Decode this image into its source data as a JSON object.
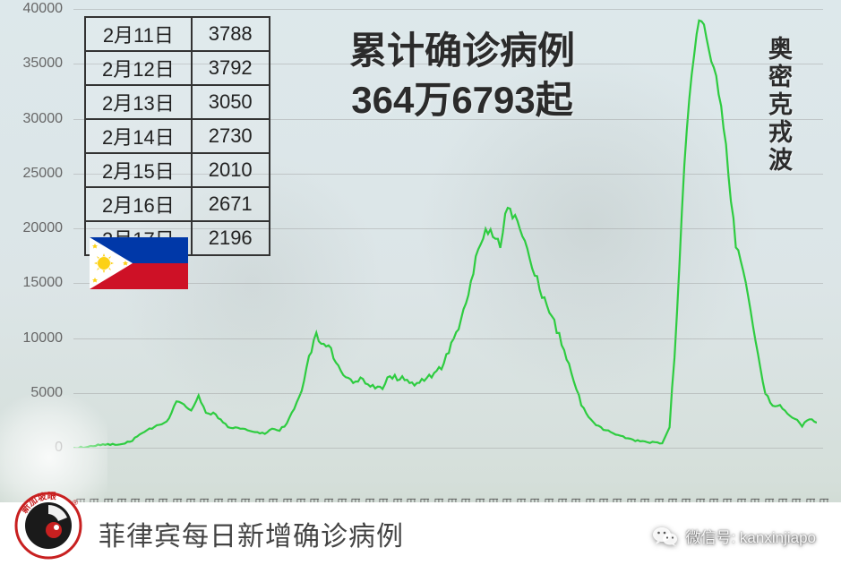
{
  "chart": {
    "type": "line",
    "title": "菲律宾每日新增确诊病例",
    "line_color": "#2ecc40",
    "grid_color": "rgba(150,150,150,0.4)",
    "background_hint": "beach_faded",
    "ylim": [
      0,
      40000
    ],
    "ytick_step": 5000,
    "yticks": [
      0,
      5000,
      10000,
      15000,
      20000,
      25000,
      30000,
      35000,
      40000
    ],
    "xticks": [
      "3月5日",
      "3月18日",
      "3月31日",
      "4月13日",
      "4月26日",
      "5月9日",
      "5月22日",
      "6月4日",
      "6月17日",
      "6月30日",
      "7月13日",
      "7月26日",
      "8月8日",
      "8月21日",
      "9月3日",
      "9月16日",
      "9月29日",
      "10月12日",
      "10月25日",
      "11月7日",
      "11月20日",
      "12月3日",
      "12月16日",
      "12月29日",
      "1月11日",
      "1月24日",
      "2月6日",
      "2月19日",
      "3月4日",
      "3月17日",
      "3月30日",
      "4月12日",
      "4月25日",
      "5月8日",
      "5月21日",
      "6月3日",
      "6月16日",
      "6月29日",
      "7月12日",
      "7月25日",
      "8月7日",
      "8月20日",
      "9月2日",
      "9月15日",
      "9月28日",
      "10月11日",
      "10月24日",
      "11月6日",
      "11月19日",
      "12月2日",
      "12月15日",
      "12月28日",
      "1月10日",
      "1月23日",
      "2月5日"
    ],
    "values": [
      10,
      40,
      120,
      200,
      260,
      300,
      320,
      450,
      680,
      1200,
      1600,
      1850,
      2200,
      2600,
      4200,
      3800,
      3400,
      4600,
      3200,
      3100,
      2600,
      1900,
      1800,
      1700,
      1500,
      1400,
      1300,
      1700,
      1600,
      2200,
      3500,
      5000,
      8200,
      10200,
      9500,
      8800,
      7400,
      6200,
      6100,
      6200,
      5800,
      5400,
      5500,
      6600,
      6400,
      6200,
      5800,
      6100,
      6200,
      6800,
      7200,
      8700,
      10600,
      12400,
      14800,
      18200,
      20100,
      19600,
      18600,
      22200,
      20900,
      19400,
      17200,
      15200,
      13400,
      11800,
      10200,
      8100,
      6200,
      4000,
      2700,
      2100,
      1700,
      1400,
      1100,
      900,
      700,
      600,
      500,
      450,
      420,
      1800,
      11900,
      25800,
      34400,
      38900,
      37800,
      34600,
      31500,
      25100,
      18500,
      16200,
      12500,
      8400,
      5000,
      3788,
      3792,
      3050,
      2730,
      2010,
      2671,
      2196
    ]
  },
  "table": {
    "rows": [
      {
        "date": "2月11日",
        "value": "3788"
      },
      {
        "date": "2月12日",
        "value": "3792"
      },
      {
        "date": "2月13日",
        "value": "3050"
      },
      {
        "date": "2月14日",
        "value": "2730"
      },
      {
        "date": "2月15日",
        "value": "2010"
      },
      {
        "date": "2月16日",
        "value": "2671"
      },
      {
        "date": "2月17日",
        "value": "2196"
      }
    ]
  },
  "headline": {
    "line1": "累计确诊病例",
    "line2": "364万6793起"
  },
  "wave_label": "奥密克戎波",
  "flag": {
    "blue": "#0038a8",
    "red": "#ce1126",
    "white": "#ffffff",
    "yellow": "#fcd116"
  },
  "logo_text": "新加坡眼",
  "wechat": {
    "label": "微信号: kanxinjiapo"
  }
}
